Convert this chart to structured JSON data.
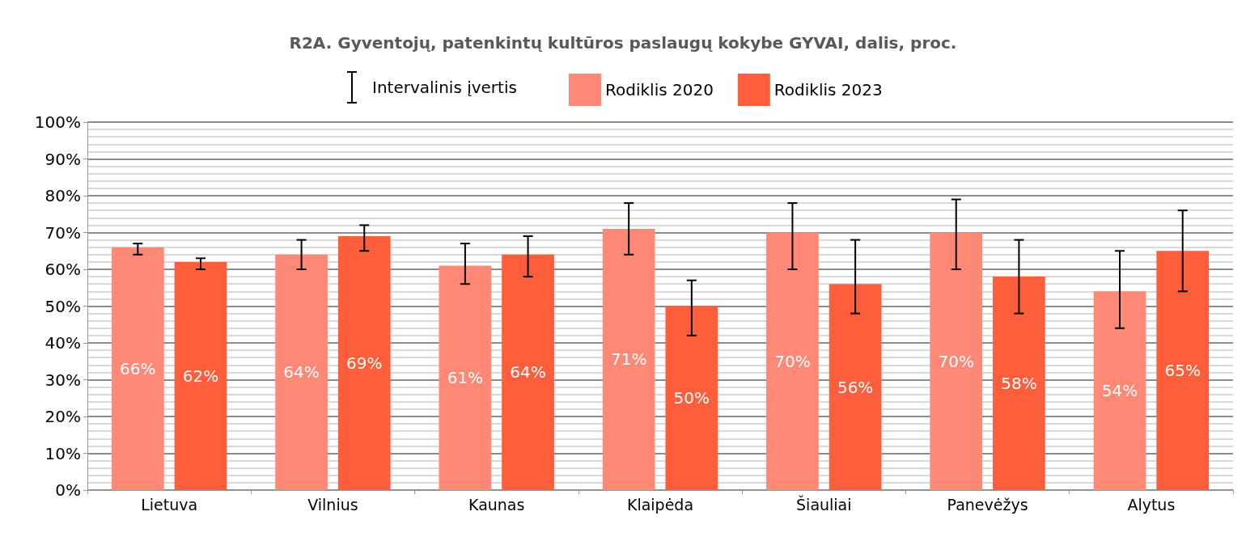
{
  "chart_data": {
    "type": "bar",
    "title": "R2A. Gyventojų, patenkintų kultūros paslaugų kokybe GYVAI, dalis, proc.",
    "categories": [
      "Lietuva",
      "Vilnius",
      "Kaunas",
      "Klaipėda",
      "Šiauliai",
      "Panevėžys",
      "Alytus"
    ],
    "series": [
      {
        "name": "Rodiklis 2020",
        "color": "#ff8877",
        "values": [
          66,
          64,
          61,
          71,
          70,
          70,
          54
        ],
        "value_labels": [
          "66%",
          "64%",
          "61%",
          "71%",
          "70%",
          "70%",
          "54%"
        ],
        "errors": [
          [
            64,
            67
          ],
          [
            60,
            68
          ],
          [
            56,
            67
          ],
          [
            64,
            78
          ],
          [
            60,
            78
          ],
          [
            60,
            79
          ],
          [
            44,
            65
          ]
        ]
      },
      {
        "name": "Rodiklis 2023",
        "color": "#ff5e3d",
        "values": [
          62,
          69,
          64,
          50,
          56,
          58,
          65
        ],
        "value_labels": [
          "62%",
          "69%",
          "64%",
          "50%",
          "56%",
          "58%",
          "65%"
        ],
        "errors": [
          [
            60,
            63
          ],
          [
            65,
            72
          ],
          [
            58,
            69
          ],
          [
            42,
            57
          ],
          [
            48,
            68
          ],
          [
            48,
            68
          ],
          [
            54,
            76
          ]
        ]
      }
    ],
    "annotations": [
      "Intervalinis įvertis"
    ],
    "ylim": [
      0,
      100
    ],
    "yticks": [
      {
        "value": 0,
        "label": "0%"
      },
      {
        "value": 10,
        "label": "10%"
      },
      {
        "value": 20,
        "label": "20%"
      },
      {
        "value": 30,
        "label": "30%"
      },
      {
        "value": 40,
        "label": "40%"
      },
      {
        "value": 50,
        "label": "50%"
      },
      {
        "value": 60,
        "label": "60%"
      },
      {
        "value": 70,
        "label": "70%"
      },
      {
        "value": 80,
        "label": "80%"
      },
      {
        "value": 90,
        "label": "90%"
      },
      {
        "value": 100,
        "label": "100%"
      }
    ],
    "grid": "y",
    "legend": "top"
  }
}
